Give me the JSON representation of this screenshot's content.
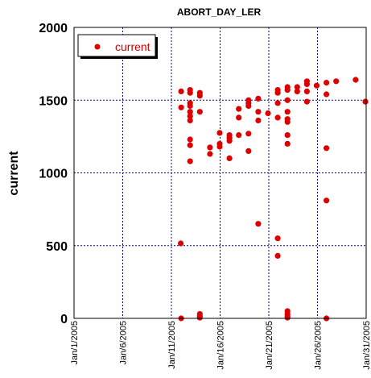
{
  "chart_data": {
    "type": "scatter",
    "title": "ABORT_DAY_LER",
    "ylabel": "current",
    "xlabel": "",
    "x_range": [
      "2005-01-01",
      "2005-01-31"
    ],
    "ylim": [
      0,
      2000
    ],
    "yticks": [
      0,
      500,
      1000,
      1500,
      2000
    ],
    "ytick_labels": [
      "0",
      "500",
      "1000",
      "1500",
      "2000"
    ],
    "xtick_labels": [
      "Jan/1/2005",
      "Jan/6/2005",
      "Jan/11/2005",
      "Jan/16/2005",
      "Jan/21/2005",
      "Jan/26/2005",
      "Jan/31/2005"
    ],
    "xtick_dates": [
      "2005-01-01",
      "2005-01-06",
      "2005-01-11",
      "2005-01-16",
      "2005-01-21",
      "2005-01-26",
      "2005-01-31"
    ],
    "grid": true,
    "legend_position": "top-left",
    "colors": {
      "series": "#dd0000",
      "grid": "#000080",
      "legend_text": "#cc0000"
    },
    "series": [
      {
        "name": "current",
        "points": [
          [
            "2005-01-11 23:00",
            515
          ],
          [
            "2005-01-12 00:00",
            1450
          ],
          [
            "2005-01-12 00:00",
            1560
          ],
          [
            "2005-01-12 00:00",
            0
          ],
          [
            "2005-01-12 22:00",
            1570
          ],
          [
            "2005-01-12 22:00",
            1550
          ],
          [
            "2005-01-12 22:00",
            1480
          ],
          [
            "2005-01-12 22:00",
            1460
          ],
          [
            "2005-01-12 22:00",
            1420
          ],
          [
            "2005-01-12 22:00",
            1390
          ],
          [
            "2005-01-12 22:00",
            1360
          ],
          [
            "2005-01-12 22:00",
            1230
          ],
          [
            "2005-01-12 22:00",
            1190
          ],
          [
            "2005-01-12 22:00",
            1080
          ],
          [
            "2005-01-13 22:00",
            1550
          ],
          [
            "2005-01-13 22:00",
            1530
          ],
          [
            "2005-01-13 22:00",
            1420
          ],
          [
            "2005-01-13 22:00",
            30
          ],
          [
            "2005-01-13 22:00",
            15
          ],
          [
            "2005-01-13 22:00",
            5
          ],
          [
            "2005-01-14 23:00",
            1175
          ],
          [
            "2005-01-14 23:00",
            1130
          ],
          [
            "2005-01-15 23:00",
            1275
          ],
          [
            "2005-01-15 23:00",
            1200
          ],
          [
            "2005-01-15 23:00",
            1180
          ],
          [
            "2005-01-16 23:00",
            1260
          ],
          [
            "2005-01-16 23:00",
            1240
          ],
          [
            "2005-01-16 23:00",
            1220
          ],
          [
            "2005-01-16 23:00",
            1100
          ],
          [
            "2005-01-17 22:00",
            1440
          ],
          [
            "2005-01-17 22:00",
            1380
          ],
          [
            "2005-01-17 22:00",
            1260
          ],
          [
            "2005-01-18 22:00",
            1500
          ],
          [
            "2005-01-18 22:00",
            1480
          ],
          [
            "2005-01-18 22:00",
            1460
          ],
          [
            "2005-01-18 22:00",
            1270
          ],
          [
            "2005-01-18 22:00",
            1150
          ],
          [
            "2005-01-19 22:00",
            1510
          ],
          [
            "2005-01-19 22:00",
            1420
          ],
          [
            "2005-01-19 22:00",
            1360
          ],
          [
            "2005-01-19 22:00",
            650
          ],
          [
            "2005-01-20 22:00",
            1410
          ],
          [
            "2005-01-21 22:00",
            1570
          ],
          [
            "2005-01-21 22:00",
            1550
          ],
          [
            "2005-01-21 22:00",
            1480
          ],
          [
            "2005-01-21 22:00",
            1380
          ],
          [
            "2005-01-21 22:00",
            550
          ],
          [
            "2005-01-21 22:00",
            430
          ],
          [
            "2005-01-22 22:00",
            1590
          ],
          [
            "2005-01-22 22:00",
            1570
          ],
          [
            "2005-01-22 22:00",
            1500
          ],
          [
            "2005-01-22 22:00",
            1420
          ],
          [
            "2005-01-22 22:00",
            1370
          ],
          [
            "2005-01-22 22:00",
            1350
          ],
          [
            "2005-01-22 22:00",
            1260
          ],
          [
            "2005-01-22 22:00",
            1200
          ],
          [
            "2005-01-22 22:00",
            50
          ],
          [
            "2005-01-22 22:00",
            30
          ],
          [
            "2005-01-22 22:00",
            15
          ],
          [
            "2005-01-22 22:00",
            5
          ],
          [
            "2005-01-23 22:00",
            1590
          ],
          [
            "2005-01-23 22:00",
            1560
          ],
          [
            "2005-01-24 22:00",
            1630
          ],
          [
            "2005-01-24 22:00",
            1610
          ],
          [
            "2005-01-24 22:00",
            1560
          ],
          [
            "2005-01-24 22:00",
            1490
          ],
          [
            "2005-01-25 22:00",
            1600
          ],
          [
            "2005-01-26 22:00",
            1620
          ],
          [
            "2005-01-26 22:00",
            1540
          ],
          [
            "2005-01-26 22:00",
            1170
          ],
          [
            "2005-01-26 22:00",
            810
          ],
          [
            "2005-01-26 22:00",
            0
          ],
          [
            "2005-01-27 22:00",
            1630
          ],
          [
            "2005-01-29 22:00",
            1640
          ],
          [
            "2005-01-30 22:00",
            1490
          ]
        ]
      }
    ]
  }
}
